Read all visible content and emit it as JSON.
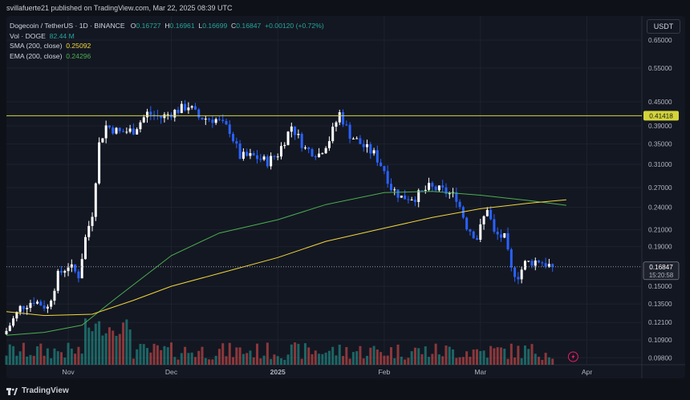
{
  "header": {
    "published_text": "svillafuerte21 published on TradingView.com, Mar 22, 2025 08:39 UTC"
  },
  "footer": {
    "brand": "TradingView"
  },
  "currency": "USDT",
  "legend": {
    "title": "Dogecoin / TetherUS · 1D · BINANCE",
    "open_label": "O",
    "open": "0.16727",
    "high_label": "H",
    "high": "0.16961",
    "low_label": "L",
    "low": "0.16699",
    "close_label": "C",
    "close": "0.16847",
    "change": "+0.00120 (+0.72%)",
    "vol_label": "Vol · DOGE",
    "vol_value": "82.44 M",
    "sma_label": "SMA (200, close)",
    "sma_value": "0.25092",
    "ema_label": "EMA (200, close)",
    "ema_value": "0.24296"
  },
  "colors": {
    "up": "#ffffff",
    "down": "#2962ff",
    "vol_up": "#26a69a",
    "vol_down": "#ef5350",
    "sma": "#f2d63a",
    "ema": "#4caf50",
    "hline": "#d4d43a",
    "background": "#131722"
  },
  "chart_data": {
    "type": "candlestick",
    "y_scale": "log",
    "ylim": [
      0.094,
      0.75
    ],
    "y_ticks": [
      "0.65000",
      "0.55000",
      "0.45000",
      "0.39000",
      "0.35000",
      "0.31000",
      "0.27000",
      "0.24000",
      "0.21000",
      "0.19000",
      "0.15000",
      "0.13500",
      "0.12100",
      "0.10900",
      "0.09800"
    ],
    "x_ticks": [
      {
        "label": "Nov",
        "date": "2024-11-01"
      },
      {
        "label": "Dec",
        "date": "2024-12-01"
      },
      {
        "label": "2025",
        "date": "2025-01-01"
      },
      {
        "label": "Feb",
        "date": "2025-02-01"
      },
      {
        "label": "Mar",
        "date": "2025-03-01"
      },
      {
        "label": "Apr",
        "date": "2025-04-01"
      }
    ],
    "xlim": [
      "2024-10-14",
      "2025-04-17"
    ],
    "horizontal_line": {
      "value": 0.41418,
      "label": "0.41418"
    },
    "last_price": {
      "value": 0.16847,
      "label": "0.16847",
      "countdown": "15:20:58"
    },
    "close_path": [
      [
        "2024-10-14",
        0.115
      ],
      [
        "2024-10-18",
        0.132
      ],
      [
        "2024-10-22",
        0.138
      ],
      [
        "2024-10-26",
        0.132
      ],
      [
        "2024-10-29",
        0.16
      ],
      [
        "2024-11-01",
        0.17
      ],
      [
        "2024-11-04",
        0.16
      ],
      [
        "2024-11-06",
        0.2
      ],
      [
        "2024-11-08",
        0.232
      ],
      [
        "2024-11-10",
        0.35
      ],
      [
        "2024-11-12",
        0.39
      ],
      [
        "2024-11-16",
        0.375
      ],
      [
        "2024-11-20",
        0.38
      ],
      [
        "2024-11-24",
        0.42
      ],
      [
        "2024-11-28",
        0.41
      ],
      [
        "2024-12-02",
        0.425
      ],
      [
        "2024-12-06",
        0.44
      ],
      [
        "2024-12-09",
        0.41
      ],
      [
        "2024-12-14",
        0.405
      ],
      [
        "2024-12-18",
        0.38
      ],
      [
        "2024-12-21",
        0.325
      ],
      [
        "2024-12-25",
        0.325
      ],
      [
        "2024-12-29",
        0.315
      ],
      [
        "2025-01-01",
        0.33
      ],
      [
        "2025-01-05",
        0.39
      ],
      [
        "2025-01-09",
        0.34
      ],
      [
        "2025-01-13",
        0.33
      ],
      [
        "2025-01-16",
        0.36
      ],
      [
        "2025-01-19",
        0.42
      ],
      [
        "2025-01-22",
        0.37
      ],
      [
        "2025-01-26",
        0.345
      ],
      [
        "2025-01-29",
        0.33
      ],
      [
        "2025-02-01",
        0.3
      ],
      [
        "2025-02-03",
        0.27
      ],
      [
        "2025-02-06",
        0.255
      ],
      [
        "2025-02-10",
        0.255
      ],
      [
        "2025-02-14",
        0.27
      ],
      [
        "2025-02-18",
        0.265
      ],
      [
        "2025-02-22",
        0.255
      ],
      [
        "2025-02-25",
        0.215
      ],
      [
        "2025-02-28",
        0.2
      ],
      [
        "2025-03-03",
        0.24
      ],
      [
        "2025-03-05",
        0.205
      ],
      [
        "2025-03-08",
        0.2
      ],
      [
        "2025-03-10",
        0.165
      ],
      [
        "2025-03-12",
        0.16
      ],
      [
        "2025-03-14",
        0.172
      ],
      [
        "2025-03-18",
        0.175
      ],
      [
        "2025-03-22",
        0.168
      ]
    ],
    "sma_200": [
      [
        "2024-10-14",
        0.129
      ],
      [
        "2024-10-25",
        0.126
      ],
      [
        "2024-11-08",
        0.127
      ],
      [
        "2024-11-20",
        0.138
      ],
      [
        "2024-12-01",
        0.15
      ],
      [
        "2024-12-15",
        0.162
      ],
      [
        "2025-01-01",
        0.178
      ],
      [
        "2025-01-15",
        0.196
      ],
      [
        "2025-02-01",
        0.212
      ],
      [
        "2025-02-15",
        0.226
      ],
      [
        "2025-03-01",
        0.238
      ],
      [
        "2025-03-15",
        0.246
      ],
      [
        "2025-03-26",
        0.251
      ]
    ],
    "ema_200": [
      [
        "2024-10-14",
        0.112
      ],
      [
        "2024-10-25",
        0.114
      ],
      [
        "2024-11-05",
        0.119
      ],
      [
        "2024-11-15",
        0.14
      ],
      [
        "2024-12-01",
        0.18
      ],
      [
        "2024-12-15",
        0.206
      ],
      [
        "2025-01-01",
        0.223
      ],
      [
        "2025-01-15",
        0.244
      ],
      [
        "2025-02-01",
        0.262
      ],
      [
        "2025-02-15",
        0.264
      ],
      [
        "2025-03-01",
        0.258
      ],
      [
        "2025-03-15",
        0.25
      ],
      [
        "2025-03-26",
        0.243
      ]
    ]
  }
}
